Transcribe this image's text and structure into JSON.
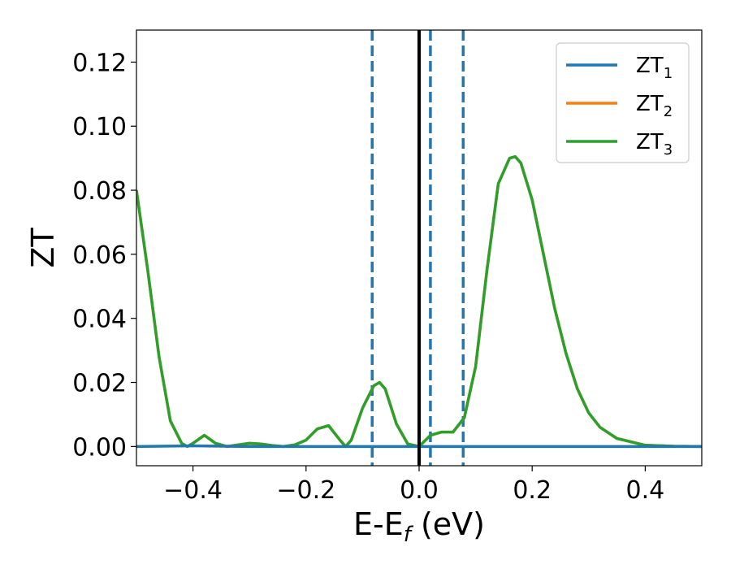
{
  "chart_data": {
    "type": "line",
    "xlabel": "E-E",
    "xlabel_sub": "f",
    "xlabel_unit": " (eV)",
    "ylabel": "ZT",
    "xlim": [
      -0.5,
      0.5
    ],
    "ylim": [
      -0.006,
      0.13
    ],
    "xticks": [
      -0.4,
      -0.2,
      0.0,
      0.2,
      0.4
    ],
    "xtick_labels": [
      "−0.4",
      "−0.2",
      "0.0",
      "0.2",
      "0.4"
    ],
    "yticks": [
      0.0,
      0.02,
      0.04,
      0.06,
      0.08,
      0.1,
      0.12
    ],
    "ytick_labels": [
      "0.00",
      "0.02",
      "0.04",
      "0.06",
      "0.08",
      "0.10",
      "0.12"
    ],
    "grid": false,
    "legend_position": "top-right",
    "vlines": {
      "solid": [
        {
          "x": 0.0,
          "color": "#000000"
        }
      ],
      "dashed": [
        {
          "x": -0.083,
          "color": "#1f77b4"
        },
        {
          "x": 0.02,
          "color": "#1f77b4"
        },
        {
          "x": 0.078,
          "color": "#1f77b4"
        }
      ]
    },
    "series": [
      {
        "name": "ZT",
        "sub": "1",
        "color": "#1f77b4",
        "x": [
          -0.5,
          -0.4,
          -0.3,
          -0.2,
          -0.1,
          0.0,
          0.1,
          0.2,
          0.3,
          0.4,
          0.5
        ],
        "y": [
          0.0,
          0.0002,
          0.0,
          0.0,
          0.0,
          0.0,
          0.0,
          0.0,
          0.0,
          0.0,
          0.0
        ]
      },
      {
        "name": "ZT",
        "sub": "2",
        "color": "#ff7f0e",
        "x": [
          -0.5,
          -0.48,
          -0.46,
          -0.44,
          -0.42,
          -0.41,
          -0.4,
          -0.38,
          -0.36,
          -0.34,
          -0.32,
          -0.3,
          -0.28,
          -0.26,
          -0.24,
          -0.22,
          -0.2,
          -0.18,
          -0.16,
          -0.14,
          -0.13,
          -0.12,
          -0.1,
          -0.08,
          -0.07,
          -0.06,
          -0.04,
          -0.02,
          0.0,
          0.02,
          0.04,
          0.06,
          0.08,
          0.1,
          0.12,
          0.14,
          0.16,
          0.17,
          0.18,
          0.2,
          0.22,
          0.24,
          0.26,
          0.28,
          0.3,
          0.32,
          0.35,
          0.4,
          0.45,
          0.5
        ],
        "y": [
          0.08,
          0.055,
          0.028,
          0.008,
          0.001,
          0.0,
          0.001,
          0.0035,
          0.001,
          0.0,
          0.0005,
          0.001,
          0.0008,
          0.0003,
          0.0,
          0.0005,
          0.002,
          0.0055,
          0.0065,
          0.002,
          0.0,
          0.002,
          0.012,
          0.019,
          0.02,
          0.018,
          0.007,
          0.0008,
          0.0,
          0.0035,
          0.0045,
          0.0045,
          0.009,
          0.025,
          0.055,
          0.082,
          0.09,
          0.0905,
          0.0885,
          0.077,
          0.06,
          0.043,
          0.029,
          0.018,
          0.0105,
          0.006,
          0.0025,
          0.0004,
          0.0001,
          0.0
        ]
      },
      {
        "name": "ZT",
        "sub": "3",
        "color": "#2ca02c",
        "x": [
          -0.5,
          -0.48,
          -0.46,
          -0.44,
          -0.42,
          -0.41,
          -0.4,
          -0.38,
          -0.36,
          -0.34,
          -0.32,
          -0.3,
          -0.28,
          -0.26,
          -0.24,
          -0.22,
          -0.2,
          -0.18,
          -0.16,
          -0.14,
          -0.13,
          -0.12,
          -0.1,
          -0.08,
          -0.07,
          -0.06,
          -0.04,
          -0.02,
          0.0,
          0.02,
          0.04,
          0.06,
          0.08,
          0.1,
          0.12,
          0.14,
          0.16,
          0.17,
          0.18,
          0.2,
          0.22,
          0.24,
          0.26,
          0.28,
          0.3,
          0.32,
          0.35,
          0.4,
          0.45,
          0.5
        ],
        "y": [
          0.08,
          0.055,
          0.028,
          0.008,
          0.001,
          0.0,
          0.001,
          0.0035,
          0.001,
          0.0,
          0.0005,
          0.001,
          0.0008,
          0.0003,
          0.0,
          0.0005,
          0.002,
          0.0055,
          0.0065,
          0.002,
          0.0,
          0.002,
          0.012,
          0.019,
          0.02,
          0.018,
          0.007,
          0.0008,
          0.0,
          0.0035,
          0.0045,
          0.0045,
          0.009,
          0.025,
          0.055,
          0.082,
          0.09,
          0.0905,
          0.0885,
          0.077,
          0.06,
          0.043,
          0.029,
          0.018,
          0.0105,
          0.006,
          0.0025,
          0.0004,
          0.0001,
          0.0
        ]
      }
    ]
  }
}
